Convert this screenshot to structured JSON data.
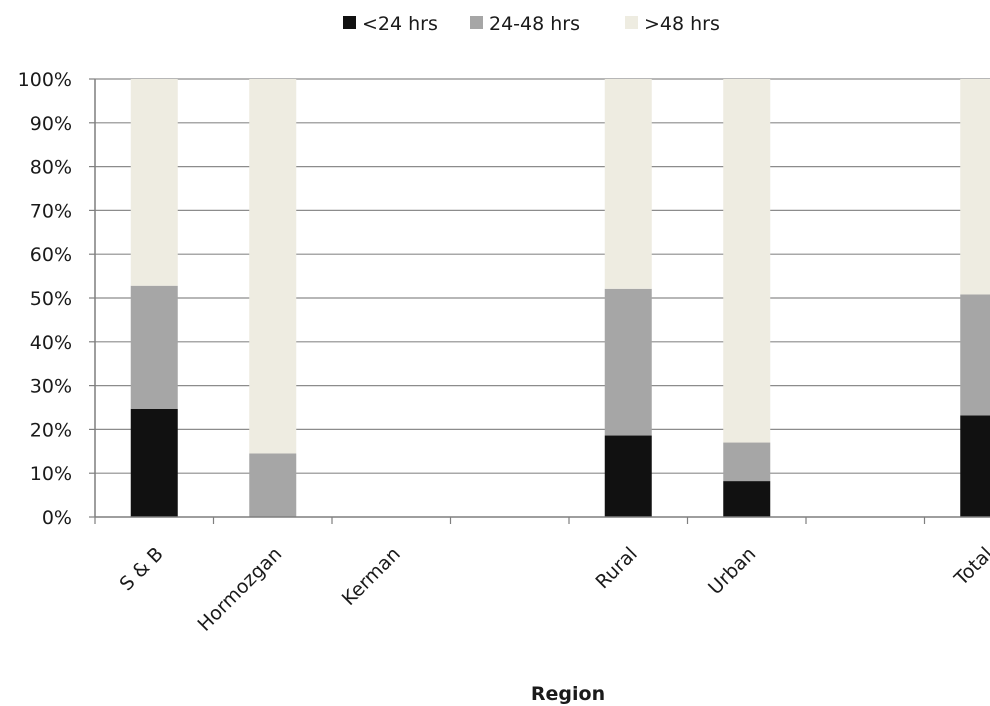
{
  "chart_data": {
    "type": "bar",
    "stacked": true,
    "percent": true,
    "categories": [
      "S & B",
      "Hormozgan",
      "Kerman",
      "",
      "Rural",
      "Urban",
      "",
      "Total"
    ],
    "series": [
      {
        "name": "<24 hrs",
        "color": "#111111",
        "values": [
          24.7,
          0,
          0,
          0,
          18.6,
          8.2,
          0,
          23.2
        ]
      },
      {
        "name": "24-48 hrs",
        "color": "#a6a6a6",
        "values": [
          28.1,
          14.5,
          0,
          0,
          33.5,
          8.8,
          0,
          27.6
        ]
      },
      {
        "name": ">48 hrs",
        "color": "#eeece1",
        "values": [
          47.2,
          85.5,
          0,
          0,
          47.9,
          83.0,
          0,
          49.2
        ]
      }
    ],
    "xlabel": "Region",
    "ylabel": "",
    "ylim": [
      0,
      100
    ],
    "yticks": [
      "0%",
      "10%",
      "20%",
      "30%",
      "40%",
      "50%",
      "60%",
      "70%",
      "80%",
      "90%",
      "100%"
    ],
    "grid": true,
    "legend_position": "top"
  }
}
